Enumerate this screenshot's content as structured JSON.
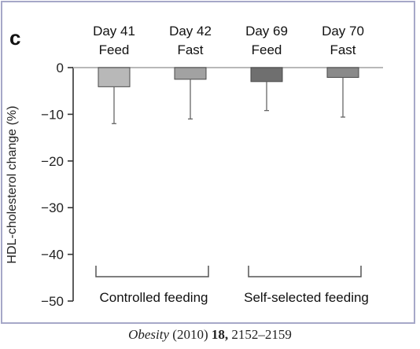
{
  "panel_label": "c",
  "caption": {
    "journal": "Obesity",
    "year": " (2010) ",
    "volume": "18,",
    "pages": " 2152–2159"
  },
  "colors": {
    "frame": "#a6a8c8",
    "axis": "#333333",
    "zero_line": "#b8b8b8",
    "bracket": "#555555"
  },
  "chart_data": {
    "type": "bar",
    "title": "",
    "xlabel": "",
    "ylabel": "HDL-cholesterol change (%)",
    "ylim": [
      -50,
      0
    ],
    "yticks": [
      0,
      -10,
      -20,
      -30,
      -40,
      -50
    ],
    "grid": false,
    "categories": [
      [
        "Day 41",
        "Feed"
      ],
      [
        "Day 42",
        "Fast"
      ],
      [
        "Day 69",
        "Feed"
      ],
      [
        "Day 70",
        "Fast"
      ]
    ],
    "values": [
      -4.1,
      -2.5,
      -3.0,
      -2.1
    ],
    "error_lower": [
      -12.0,
      -11.0,
      -9.2,
      -10.6
    ],
    "bar_colors": [
      "#b8b8b8",
      "#a2a2a2",
      "#6f6f6f",
      "#8a8a8a"
    ],
    "groups": [
      {
        "label": "Controlled feeding",
        "bars": [
          0,
          1
        ]
      },
      {
        "label": "Self-selected feeding",
        "bars": [
          2,
          3
        ]
      }
    ]
  }
}
